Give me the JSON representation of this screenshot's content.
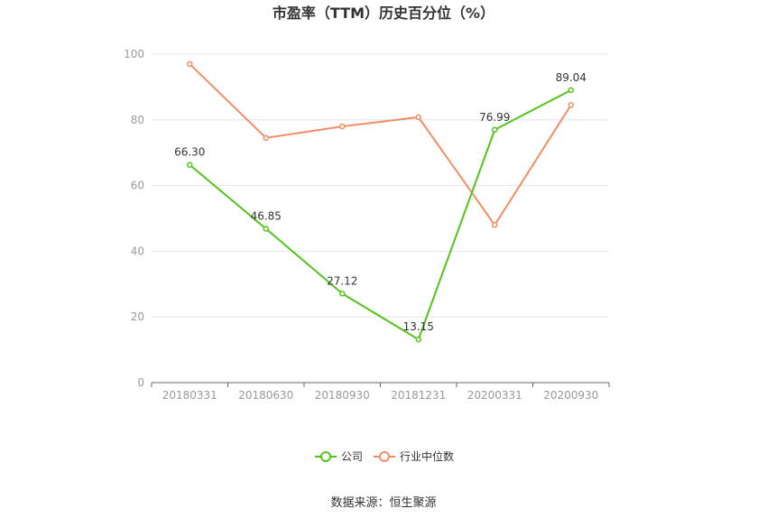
{
  "chart_data": {
    "type": "line",
    "title": "市盈率（TTM）历史百分位（%）",
    "categories": [
      "20180331",
      "20180630",
      "20180930",
      "20181231",
      "20200331",
      "20200930"
    ],
    "ylim": [
      0,
      100
    ],
    "yticks": [
      0,
      20,
      40,
      60,
      80,
      100
    ],
    "grid": true,
    "legend_position": "bottom",
    "series": [
      {
        "name": "公司",
        "color": "#52c41a",
        "values": [
          66.3,
          46.85,
          27.12,
          13.15,
          76.99,
          89.04
        ],
        "labels": [
          "66.30",
          "46.85",
          "27.12",
          "13.15",
          "76.99",
          "89.04"
        ]
      },
      {
        "name": "行业中位数",
        "color": "#f28c65",
        "values": [
          97.0,
          74.5,
          78.0,
          80.8,
          48.0,
          84.5
        ],
        "labels": []
      }
    ],
    "source": "数据来源：恒生聚源"
  }
}
